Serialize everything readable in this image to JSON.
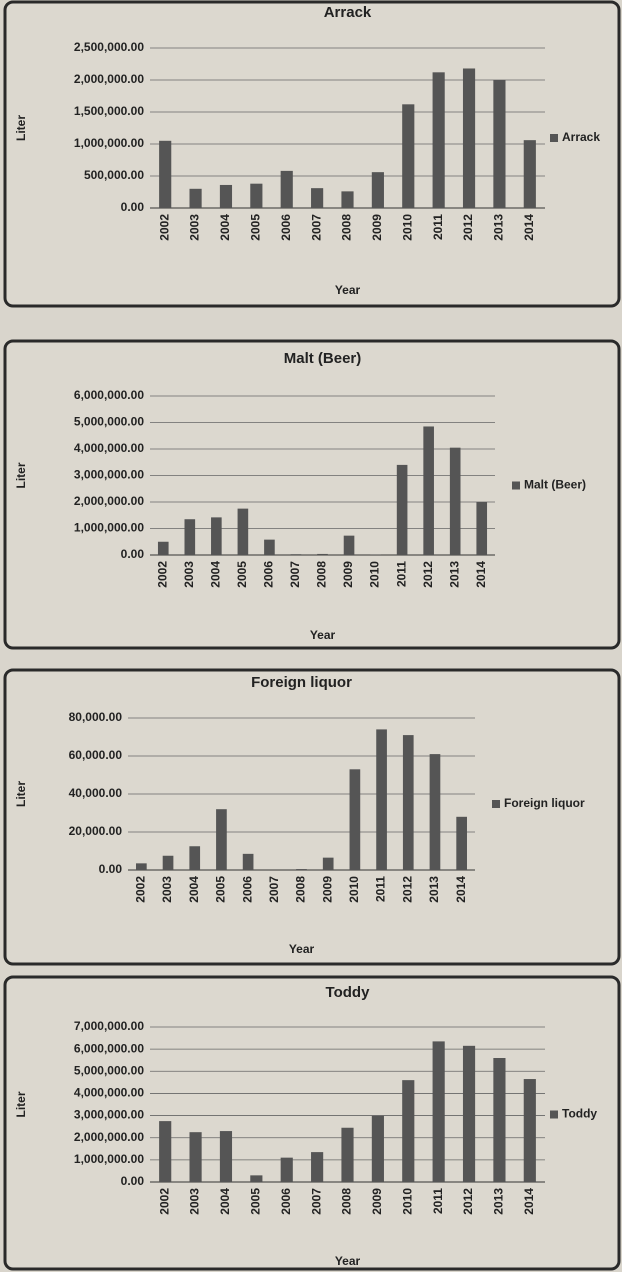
{
  "chart_data": [
    {
      "type": "bar",
      "title": "Arrack",
      "x_label": "Year",
      "y_label": "Liter",
      "categories": [
        "2002",
        "2003",
        "2004",
        "2005",
        "2006",
        "2007",
        "2008",
        "2009",
        "2010",
        "2011",
        "2012",
        "2013",
        "2014"
      ],
      "series": [
        {
          "name": "Arrack",
          "color": "#555555",
          "values": [
            1050000,
            300000,
            360000,
            380000,
            580000,
            310000,
            260000,
            560000,
            1620000,
            2120000,
            2180000,
            2000000,
            1060000
          ]
        }
      ],
      "ylim": [
        0,
        2500000
      ],
      "yticks": [
        {
          "value": 0,
          "label": "0.00"
        },
        {
          "value": 500000,
          "label": "500,000.00"
        },
        {
          "value": 1000000,
          "label": "1,000,000.00"
        },
        {
          "value": 1500000,
          "label": "1,500,000.00"
        },
        {
          "value": 2000000,
          "label": "2,000,000.00"
        },
        {
          "value": 2500000,
          "label": "2,500,000.00"
        }
      ],
      "grid": true
    },
    {
      "type": "bar",
      "title": "Malt (Beer)",
      "x_label": "Year",
      "y_label": "Liter",
      "categories": [
        "2002",
        "2003",
        "2004",
        "2005",
        "2006",
        "2007",
        "2008",
        "2009",
        "2010",
        "2011",
        "2012",
        "2013",
        "2014"
      ],
      "series": [
        {
          "name": "Malt (Beer)",
          "color": "#555555",
          "values": [
            500000,
            1350000,
            1420000,
            1750000,
            580000,
            30000,
            40000,
            730000,
            10000,
            3400000,
            4850000,
            4050000,
            2000000
          ]
        }
      ],
      "ylim": [
        0,
        6000000
      ],
      "yticks": [
        {
          "value": 0,
          "label": "0.00"
        },
        {
          "value": 1000000,
          "label": "1,000,000.00"
        },
        {
          "value": 2000000,
          "label": "2,000,000.00"
        },
        {
          "value": 3000000,
          "label": "3,000,000.00"
        },
        {
          "value": 4000000,
          "label": "4,000,000.00"
        },
        {
          "value": 5000000,
          "label": "5,000,000.00"
        },
        {
          "value": 6000000,
          "label": "6,000,000.00"
        }
      ],
      "grid": true
    },
    {
      "type": "bar",
      "title": "Foreign liquor",
      "x_label": "Year",
      "y_label": "Liter",
      "categories": [
        "2002",
        "2003",
        "2004",
        "2005",
        "2006",
        "2007",
        "2008",
        "2009",
        "2010",
        "2011",
        "2012",
        "2013",
        "2014"
      ],
      "series": [
        {
          "name": "Foreign liquor",
          "color": "#555555",
          "values": [
            3500,
            7500,
            12500,
            32000,
            8500,
            0,
            500,
            6500,
            53000,
            74000,
            71000,
            61000,
            28000
          ]
        }
      ],
      "ylim": [
        0,
        80000
      ],
      "yticks": [
        {
          "value": 0,
          "label": "0.00"
        },
        {
          "value": 20000,
          "label": "20,000.00"
        },
        {
          "value": 40000,
          "label": "40,000.00"
        },
        {
          "value": 60000,
          "label": "60,000.00"
        },
        {
          "value": 80000,
          "label": "80,000.00"
        }
      ],
      "grid": true
    },
    {
      "type": "bar",
      "title": "Toddy",
      "x_label": "Year",
      "y_label": "Liter",
      "categories": [
        "2002",
        "2003",
        "2004",
        "2005",
        "2006",
        "2007",
        "2008",
        "2009",
        "2010",
        "2011",
        "2012",
        "2013",
        "2014"
      ],
      "series": [
        {
          "name": "Toddy",
          "color": "#555555",
          "values": [
            2750000,
            2250000,
            2300000,
            300000,
            1100000,
            1350000,
            2450000,
            3000000,
            4600000,
            6350000,
            6150000,
            5600000,
            4650000
          ]
        }
      ],
      "ylim": [
        0,
        7000000
      ],
      "yticks": [
        {
          "value": 0,
          "label": "0.00"
        },
        {
          "value": 1000000,
          "label": "1,000,000.00"
        },
        {
          "value": 2000000,
          "label": "2,000,000.00"
        },
        {
          "value": 3000000,
          "label": "3,000,000.00"
        },
        {
          "value": 4000000,
          "label": "4,000,000.00"
        },
        {
          "value": 5000000,
          "label": "5,000,000.00"
        },
        {
          "value": 6000000,
          "label": "6,000,000.00"
        },
        {
          "value": 7000000,
          "label": "7,000,000.00"
        }
      ],
      "grid": true
    }
  ]
}
